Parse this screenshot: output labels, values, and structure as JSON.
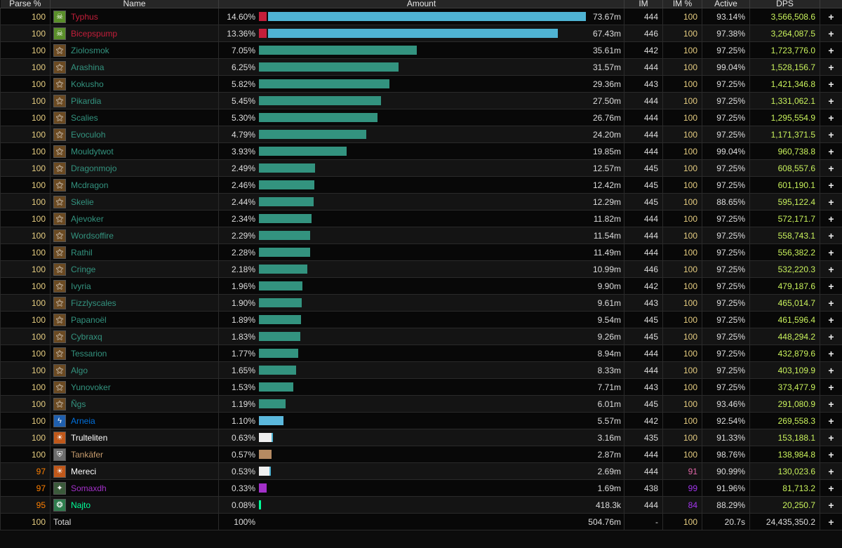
{
  "headers": {
    "parse": "Parse %",
    "name": "Name",
    "amount": "Amount",
    "ilvl": "IM",
    "ilvl_pct": "IM %",
    "active": "Active",
    "dps": "DPS"
  },
  "colors": {
    "class": {
      "dk": "#c41e3a",
      "evoker": "#33937f",
      "shaman": "#0070dd",
      "priest": "#ffffff",
      "warrior": "#c69b6d",
      "dh": "#a330c9",
      "monk": "#00ff98"
    },
    "parse": {
      "100": "#e5cc80",
      "97_99": "#ff8000",
      "95": "#ff8000"
    },
    "ilvl_pct": {
      "100": "#e5cc80",
      "pink": "#e268a8",
      "purple": "#a335ee"
    },
    "bars": {
      "dk": "#4fb3d3",
      "evoker": "#33937f",
      "shaman": "#5bb8dc",
      "priest": "#f0f0f0",
      "warrior": "#b58a62",
      "dh": "#a330c9",
      "monk": "#00ff98"
    }
  },
  "icons": {
    "dk": "skull-green-icon",
    "evoker": "dragon-icon",
    "shaman": "lightning-icon",
    "priest": "flame-skull-icon",
    "warrior": "shield-icon",
    "dh": "demon-icon",
    "monk": "jade-icon"
  },
  "rows": [
    {
      "parse": "100",
      "name": "Typhus",
      "class": "dk",
      "pct": "14.60%",
      "amount": "73.67m",
      "fraction": 1.0,
      "ilvl": "444",
      "ilvl_pct": "100",
      "active": "93.14%",
      "dps": "3,566,508.6"
    },
    {
      "parse": "100",
      "name": "Bicepspump",
      "class": "dk",
      "pct": "13.36%",
      "amount": "67.43m",
      "fraction": 0.915,
      "ilvl": "446",
      "ilvl_pct": "100",
      "active": "97.38%",
      "dps": "3,264,087.5"
    },
    {
      "parse": "100",
      "name": "Ziolosmok",
      "class": "evoker",
      "pct": "7.05%",
      "amount": "35.61m",
      "fraction": 0.483,
      "ilvl": "442",
      "ilvl_pct": "100",
      "active": "97.25%",
      "dps": "1,723,776.0"
    },
    {
      "parse": "100",
      "name": "Arashina",
      "class": "evoker",
      "pct": "6.25%",
      "amount": "31.57m",
      "fraction": 0.428,
      "ilvl": "444",
      "ilvl_pct": "100",
      "active": "99.04%",
      "dps": "1,528,156.7"
    },
    {
      "parse": "100",
      "name": "Kokusho",
      "class": "evoker",
      "pct": "5.82%",
      "amount": "29.36m",
      "fraction": 0.399,
      "ilvl": "443",
      "ilvl_pct": "100",
      "active": "97.25%",
      "dps": "1,421,346.8"
    },
    {
      "parse": "100",
      "name": "Pikardia",
      "class": "evoker",
      "pct": "5.45%",
      "amount": "27.50m",
      "fraction": 0.373,
      "ilvl": "444",
      "ilvl_pct": "100",
      "active": "97.25%",
      "dps": "1,331,062.1"
    },
    {
      "parse": "100",
      "name": "Scalies",
      "class": "evoker",
      "pct": "5.30%",
      "amount": "26.76m",
      "fraction": 0.363,
      "ilvl": "444",
      "ilvl_pct": "100",
      "active": "97.25%",
      "dps": "1,295,554.9"
    },
    {
      "parse": "100",
      "name": "Evoculoh",
      "class": "evoker",
      "pct": "4.79%",
      "amount": "24.20m",
      "fraction": 0.328,
      "ilvl": "444",
      "ilvl_pct": "100",
      "active": "97.25%",
      "dps": "1,171,371.5"
    },
    {
      "parse": "100",
      "name": "Mouldytwot",
      "class": "evoker",
      "pct": "3.93%",
      "amount": "19.85m",
      "fraction": 0.269,
      "ilvl": "444",
      "ilvl_pct": "100",
      "active": "99.04%",
      "dps": "960,738.8"
    },
    {
      "parse": "100",
      "name": "Dragonmojo",
      "class": "evoker",
      "pct": "2.49%",
      "amount": "12.57m",
      "fraction": 0.171,
      "ilvl": "445",
      "ilvl_pct": "100",
      "active": "97.25%",
      "dps": "608,557.6"
    },
    {
      "parse": "100",
      "name": "Mcdragon",
      "class": "evoker",
      "pct": "2.46%",
      "amount": "12.42m",
      "fraction": 0.169,
      "ilvl": "445",
      "ilvl_pct": "100",
      "active": "97.25%",
      "dps": "601,190.1"
    },
    {
      "parse": "100",
      "name": "Skelie",
      "class": "evoker",
      "pct": "2.44%",
      "amount": "12.29m",
      "fraction": 0.167,
      "ilvl": "445",
      "ilvl_pct": "100",
      "active": "88.65%",
      "dps": "595,122.4"
    },
    {
      "parse": "100",
      "name": "Ajevoker",
      "class": "evoker",
      "pct": "2.34%",
      "amount": "11.82m",
      "fraction": 0.16,
      "ilvl": "444",
      "ilvl_pct": "100",
      "active": "97.25%",
      "dps": "572,171.7"
    },
    {
      "parse": "100",
      "name": "Wordsoffire",
      "class": "evoker",
      "pct": "2.29%",
      "amount": "11.54m",
      "fraction": 0.157,
      "ilvl": "444",
      "ilvl_pct": "100",
      "active": "97.25%",
      "dps": "558,743.1"
    },
    {
      "parse": "100",
      "name": "Rathil",
      "class": "evoker",
      "pct": "2.28%",
      "amount": "11.49m",
      "fraction": 0.156,
      "ilvl": "444",
      "ilvl_pct": "100",
      "active": "97.25%",
      "dps": "556,382.2"
    },
    {
      "parse": "100",
      "name": "Cringe",
      "class": "evoker",
      "pct": "2.18%",
      "amount": "10.99m",
      "fraction": 0.149,
      "ilvl": "446",
      "ilvl_pct": "100",
      "active": "97.25%",
      "dps": "532,220.3"
    },
    {
      "parse": "100",
      "name": "Ivyria",
      "class": "evoker",
      "pct": "1.96%",
      "amount": "9.90m",
      "fraction": 0.134,
      "ilvl": "442",
      "ilvl_pct": "100",
      "active": "97.25%",
      "dps": "479,187.6"
    },
    {
      "parse": "100",
      "name": "Fizzlyscales",
      "class": "evoker",
      "pct": "1.90%",
      "amount": "9.61m",
      "fraction": 0.13,
      "ilvl": "443",
      "ilvl_pct": "100",
      "active": "97.25%",
      "dps": "465,014.7"
    },
    {
      "parse": "100",
      "name": "Papanoël",
      "class": "evoker",
      "pct": "1.89%",
      "amount": "9.54m",
      "fraction": 0.129,
      "ilvl": "445",
      "ilvl_pct": "100",
      "active": "97.25%",
      "dps": "461,596.4"
    },
    {
      "parse": "100",
      "name": "Cybraxq",
      "class": "evoker",
      "pct": "1.83%",
      "amount": "9.26m",
      "fraction": 0.126,
      "ilvl": "445",
      "ilvl_pct": "100",
      "active": "97.25%",
      "dps": "448,294.2"
    },
    {
      "parse": "100",
      "name": "Tessarion",
      "class": "evoker",
      "pct": "1.77%",
      "amount": "8.94m",
      "fraction": 0.121,
      "ilvl": "444",
      "ilvl_pct": "100",
      "active": "97.25%",
      "dps": "432,879.6"
    },
    {
      "parse": "100",
      "name": "Algo",
      "class": "evoker",
      "pct": "1.65%",
      "amount": "8.33m",
      "fraction": 0.113,
      "ilvl": "444",
      "ilvl_pct": "100",
      "active": "97.25%",
      "dps": "403,109.9"
    },
    {
      "parse": "100",
      "name": "Yunovoker",
      "class": "evoker",
      "pct": "1.53%",
      "amount": "7.71m",
      "fraction": 0.105,
      "ilvl": "443",
      "ilvl_pct": "100",
      "active": "97.25%",
      "dps": "373,477.9"
    },
    {
      "parse": "100",
      "name": "Ñgs",
      "class": "evoker",
      "pct": "1.19%",
      "amount": "6.01m",
      "fraction": 0.082,
      "ilvl": "445",
      "ilvl_pct": "100",
      "active": "93.46%",
      "dps": "291,080.9"
    },
    {
      "parse": "100",
      "name": "Arneia",
      "class": "shaman",
      "pct": "1.10%",
      "amount": "5.57m",
      "fraction": 0.076,
      "ilvl": "442",
      "ilvl_pct": "100",
      "active": "92.54%",
      "dps": "269,558.3"
    },
    {
      "parse": "100",
      "name": "Trulteliten",
      "class": "priest",
      "pct": "0.63%",
      "amount": "3.16m",
      "fraction": 0.043,
      "ilvl": "435",
      "ilvl_pct": "100",
      "active": "91.33%",
      "dps": "153,188.1"
    },
    {
      "parse": "100",
      "name": "Tankäfer",
      "class": "warrior",
      "pct": "0.57%",
      "amount": "2.87m",
      "fraction": 0.039,
      "ilvl": "444",
      "ilvl_pct": "100",
      "active": "98.76%",
      "dps": "138,984.8"
    },
    {
      "parse": "97",
      "name": "Mereci",
      "class": "priest",
      "pct": "0.53%",
      "amount": "2.69m",
      "fraction": 0.037,
      "ilvl": "444",
      "ilvl_pct": "91",
      "active": "90.99%",
      "dps": "130,023.6"
    },
    {
      "parse": "97",
      "name": "Somaxdh",
      "class": "dh",
      "pct": "0.33%",
      "amount": "1.69m",
      "fraction": 0.023,
      "ilvl": "438",
      "ilvl_pct": "99",
      "active": "91.96%",
      "dps": "81,713.2"
    },
    {
      "parse": "95",
      "name": "Najto",
      "class": "monk",
      "pct": "0.08%",
      "amount": "418.3k",
      "fraction": 0.006,
      "ilvl": "444",
      "ilvl_pct": "84",
      "active": "88.29%",
      "dps": "20,250.7"
    }
  ],
  "total": {
    "parse": "100",
    "name": "Total",
    "pct": "100%",
    "amount": "504.76m",
    "ilvl": "-",
    "ilvl_pct": "100",
    "active": "20.7s",
    "dps": "24,435,350.2"
  },
  "plus_label": "+"
}
